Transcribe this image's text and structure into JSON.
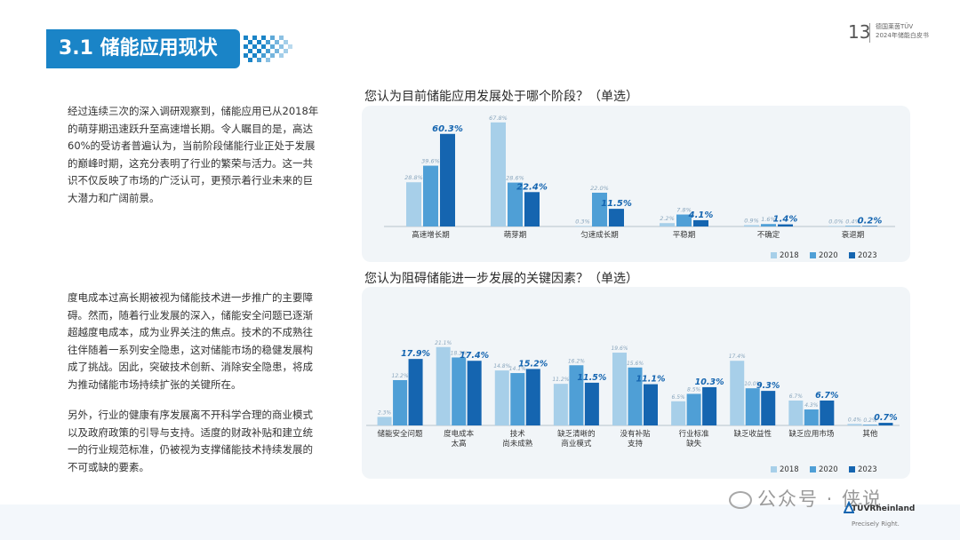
{
  "header": {
    "section_title": "3.1 储能应用现状",
    "page_number": "13",
    "report_lines": [
      "德国莱茵TÜV",
      "2024年储能白皮书"
    ]
  },
  "paragraphs": [
    "经过连续三次的深入调研观察到，储能应用已从2018年的萌芽期迅速跃升至高速增长期。令人瞩目的是，高达60%的受访者普遍认为，当前阶段储能行业正处于发展的巅峰时期，这充分表明了行业的繁荣与活力。这一共识不仅反映了市场的广泛认可，更预示着行业未来的巨大潜力和广阔前景。",
    "度电成本过高长期被视为储能技术进一步推广的主要障碍。然而，随着行业发展的深入，储能安全问题已逐渐超越度电成本，成为业界关注的焦点。技术的不成熟往往伴随着一系列安全隐患，这对储能市场的稳健发展构成了挑战。因此，突破技术创新、消除安全隐患，将成为推动储能市场持续扩张的关键所在。",
    "另外，行业的健康有序发展离不开科学合理的商业模式以及政府政策的引导与支持。适度的财政补贴和建立统一的行业规范标准，仍被视为支撑储能技术持续发展的不可或缺的要素。"
  ],
  "chart_data": [
    {
      "type": "bar",
      "title": "您认为目前储能应用发展处于哪个阶段？（单选）",
      "categories": [
        [
          "高速增长期"
        ],
        [
          "萌芽期"
        ],
        [
          "匀速成长期"
        ],
        [
          "平稳期"
        ],
        [
          "不确定"
        ],
        [
          "衰退期"
        ]
      ],
      "series": [
        {
          "name": "2018",
          "values": [
            28.8,
            67.8,
            0.3,
            2.2,
            0.9,
            0.0
          ]
        },
        {
          "name": "2020",
          "values": [
            39.6,
            28.6,
            22.0,
            7.8,
            1.6,
            0.4
          ]
        },
        {
          "name": "2023",
          "values": [
            60.3,
            22.4,
            11.5,
            4.1,
            1.4,
            0.2
          ]
        }
      ],
      "ylim": [
        0,
        70
      ],
      "grid": false,
      "legend": "bottom-right",
      "value_suffix": "%"
    },
    {
      "type": "bar",
      "title": "您认为阻碍储能进一步发展的关键因素？（单选）",
      "categories": [
        [
          "储能安全问题"
        ],
        [
          "度电成本",
          "太高"
        ],
        [
          "技术",
          "尚未成熟"
        ],
        [
          "缺乏清晰的",
          "商业模式"
        ],
        [
          "没有补贴",
          "支持"
        ],
        [
          "行业标准",
          "缺失"
        ],
        [
          "缺乏收益性"
        ],
        [
          "缺乏应用市场"
        ],
        [
          "其他"
        ]
      ],
      "series": [
        {
          "name": "2018",
          "values": [
            2.3,
            21.1,
            14.8,
            11.2,
            19.6,
            6.5,
            17.4,
            6.7,
            0.4
          ]
        },
        {
          "name": "2020",
          "values": [
            12.2,
            18.3,
            14.1,
            16.2,
            15.6,
            8.5,
            10.0,
            4.3,
            0.2
          ]
        },
        {
          "name": "2023",
          "values": [
            17.9,
            17.4,
            15.2,
            11.5,
            11.1,
            10.3,
            9.3,
            6.7,
            0.7
          ]
        }
      ],
      "ylim": [
        0,
        22
      ],
      "grid": false,
      "legend": "bottom-right",
      "value_suffix": "%"
    }
  ],
  "colors": {
    "banner": "#1a84c7",
    "series_2018": "#a7cfe9",
    "series_2020": "#4f9fd6",
    "series_2023": "#1565b0",
    "chart_bg": "#f1f5f8"
  },
  "footer": {
    "watermark": "公众号 · 侠说",
    "brand": "TÜVRheinland",
    "slogan": "Precisely Right."
  }
}
